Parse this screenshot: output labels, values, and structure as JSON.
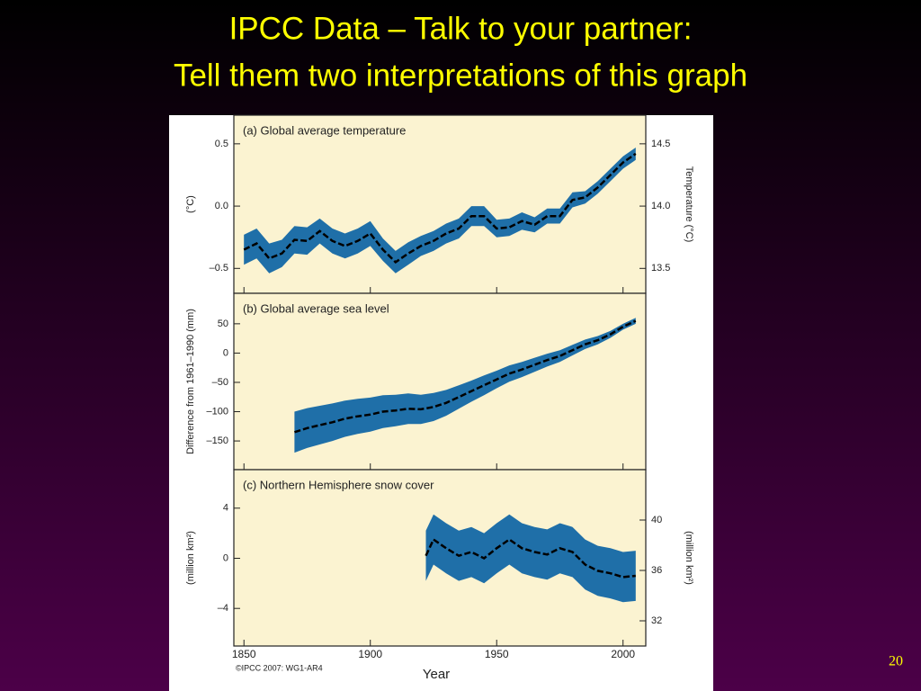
{
  "slide": {
    "title_line1": "IPCC Data – Talk to your partner:",
    "title_line2": "Tell them two interpretations of this graph",
    "page_number": "20",
    "x_label": "Year",
    "credit": "©IPCC 2007: WG1-AR4"
  },
  "chart_data": [
    {
      "type": "line",
      "title": "(a) Global average temperature",
      "ylabel": "(°C)",
      "y2label": "Temperature (°C)",
      "line_color": "#000000",
      "band_color": "#1f6fa8",
      "background": "#fbf3d1",
      "x": [
        1850,
        1855,
        1860,
        1865,
        1870,
        1875,
        1880,
        1885,
        1890,
        1895,
        1900,
        1905,
        1910,
        1915,
        1920,
        1925,
        1930,
        1935,
        1940,
        1945,
        1950,
        1955,
        1960,
        1965,
        1970,
        1975,
        1980,
        1985,
        1990,
        1995,
        2000,
        2005
      ],
      "values": [
        -0.35,
        -0.3,
        -0.42,
        -0.38,
        -0.27,
        -0.28,
        -0.2,
        -0.28,
        -0.32,
        -0.28,
        -0.22,
        -0.35,
        -0.45,
        -0.38,
        -0.32,
        -0.28,
        -0.22,
        -0.18,
        -0.08,
        -0.08,
        -0.18,
        -0.17,
        -0.12,
        -0.15,
        -0.08,
        -0.08,
        0.05,
        0.07,
        0.15,
        0.25,
        0.35,
        0.42
      ],
      "error": [
        0.12,
        0.12,
        0.12,
        0.11,
        0.11,
        0.11,
        0.1,
        0.1,
        0.1,
        0.1,
        0.1,
        0.09,
        0.09,
        0.09,
        0.08,
        0.08,
        0.08,
        0.08,
        0.08,
        0.08,
        0.07,
        0.07,
        0.07,
        0.06,
        0.06,
        0.06,
        0.06,
        0.05,
        0.05,
        0.05,
        0.05,
        0.05
      ],
      "xlim": [
        1846,
        2009
      ],
      "xticks": [
        1850,
        1900,
        1950,
        2000
      ],
      "ylim": [
        -0.7,
        0.73
      ],
      "yticks": [
        {
          "value": 0.5,
          "label": "0.5"
        },
        {
          "value": 0,
          "label": "0.0"
        },
        {
          "value": -0.5,
          "label": "–0.5"
        }
      ],
      "y2lim": [
        13.3,
        14.73
      ],
      "y2ticks": [
        14.5,
        {
          "value": 14,
          "label": "14.0"
        },
        13.5
      ]
    },
    {
      "type": "line",
      "title": "(b) Global average sea level",
      "ylabel": "Difference from 1961–1990 (mm)",
      "line_color": "#000000",
      "band_color": "#1f6fa8",
      "background": "#fbf3d1",
      "x": [
        1870,
        1875,
        1880,
        1885,
        1890,
        1895,
        1900,
        1905,
        1910,
        1915,
        1920,
        1925,
        1930,
        1935,
        1940,
        1945,
        1950,
        1955,
        1960,
        1965,
        1970,
        1975,
        1980,
        1985,
        1990,
        1995,
        2000,
        2005
      ],
      "values": [
        -135,
        -128,
        -123,
        -118,
        -112,
        -108,
        -105,
        -100,
        -98,
        -95,
        -96,
        -92,
        -85,
        -75,
        -65,
        -55,
        -45,
        -35,
        -28,
        -20,
        -12,
        -5,
        5,
        15,
        22,
        32,
        45,
        55
      ],
      "error": [
        35,
        34,
        33,
        32,
        31,
        30,
        29,
        28,
        27,
        26,
        25,
        24,
        22,
        20,
        18,
        17,
        15,
        14,
        13,
        12,
        11,
        10,
        9,
        8,
        7,
        6,
        5,
        5
      ],
      "xlim": [
        1846,
        2009
      ],
      "xticks": [
        1850,
        1900,
        1950,
        2000
      ],
      "ylim": [
        -199,
        102
      ],
      "yticks": [
        50,
        0,
        {
          "value": -50,
          "label": "–50"
        },
        {
          "value": -100,
          "label": "–100"
        },
        {
          "value": -150,
          "label": "–150"
        }
      ]
    },
    {
      "type": "line",
      "title": "(c) Northern Hemisphere snow cover",
      "ylabel": "(million km²)",
      "y2label": "(million km²)",
      "line_color": "#000000",
      "band_color": "#1f6fa8",
      "background": "#fbf3d1",
      "x": [
        1922,
        1925,
        1930,
        1935,
        1940,
        1945,
        1950,
        1955,
        1960,
        1965,
        1970,
        1975,
        1980,
        1985,
        1990,
        1995,
        2000,
        2005
      ],
      "values": [
        0.2,
        1.5,
        0.8,
        0.2,
        0.5,
        0,
        0.8,
        1.5,
        0.8,
        0.5,
        0.3,
        0.8,
        0.5,
        -0.5,
        -1,
        -1.2,
        -1.5,
        -1.4
      ],
      "error": [
        2,
        2,
        2,
        2,
        2,
        2,
        2,
        2,
        2,
        2,
        2,
        2,
        2,
        2,
        2,
        2,
        2,
        2
      ],
      "xlim": [
        1846,
        2009
      ],
      "xticks": [
        1850,
        1900,
        1950,
        2000
      ],
      "ylim": [
        -7,
        7.07
      ],
      "yticks": [
        4,
        0,
        {
          "value": -4,
          "label": "–4"
        }
      ],
      "y2lim": [
        30,
        44
      ],
      "y2ticks": [
        40,
        36,
        32
      ]
    }
  ]
}
